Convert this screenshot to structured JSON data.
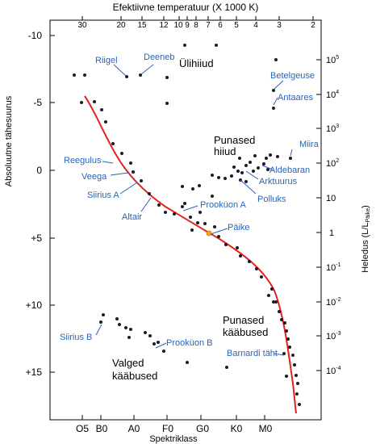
{
  "top_axis": {
    "title": "Efektiivne temperatuur (X 1000 K)",
    "ticks": [
      "30",
      "20",
      "15",
      "12",
      "10",
      "9",
      "8",
      "7",
      "6",
      "5",
      "4",
      "3",
      "2"
    ]
  },
  "bottom_axis": {
    "title": "Spektriklass",
    "ticks": [
      "O5",
      "B0",
      "A0",
      "F0",
      "G0",
      "K0",
      "M0"
    ]
  },
  "left_axis": {
    "title": "Absoluutne tähesuurus",
    "ticks": [
      "-10",
      "-5",
      "0",
      "+5",
      "+10",
      "+15"
    ]
  },
  "right_axis": {
    "title": "Heledus (L/L",
    "title_sub": "Päike",
    "title_end": ")",
    "ticks": [
      {
        "base": "10",
        "exp": "5"
      },
      {
        "base": "10",
        "exp": "4"
      },
      {
        "base": "10",
        "exp": "3"
      },
      {
        "base": "10",
        "exp": "2"
      },
      {
        "base": "10",
        "exp": ""
      },
      {
        "base": "1",
        "exp": ""
      },
      {
        "base": "10",
        "exp": "-1"
      },
      {
        "base": "10",
        "exp": "-2"
      },
      {
        "base": "10",
        "exp": "-3"
      },
      {
        "base": "10",
        "exp": "-4"
      }
    ]
  },
  "regions": {
    "supergiants": "Ülihiiud",
    "red_giants_1": "Punased",
    "red_giants_2": "hiiud",
    "red_dwarfs_1": "Punased",
    "red_dwarfs_2": "kääbused",
    "white_dwarfs_1": "Valged",
    "white_dwarfs_2": "kääbused"
  },
  "star_labels": {
    "rigel": "Riigel",
    "deneb": "Deeneb",
    "betelgeuse": "Betelgeuse",
    "antares": "Antaares",
    "miira": "Miira",
    "aldebaran": "Aldebaran",
    "arcturus": "Arktuurus",
    "pollux": "Polluks",
    "regulus": "Reegulus",
    "vega": "Veega",
    "sirius_a": "Siirius A",
    "altair": "Altair",
    "procyon_a": "Prooküon A",
    "sun": "Päike",
    "sirius_b": "Siirius B",
    "procyon_b": "Prooküon B",
    "barnard": "Barnardi täht"
  },
  "colors": {
    "main_sequence": "#e3221c",
    "label": "#2a63b8",
    "sun": "#f2a81c",
    "star": "#1a1a2a"
  }
}
